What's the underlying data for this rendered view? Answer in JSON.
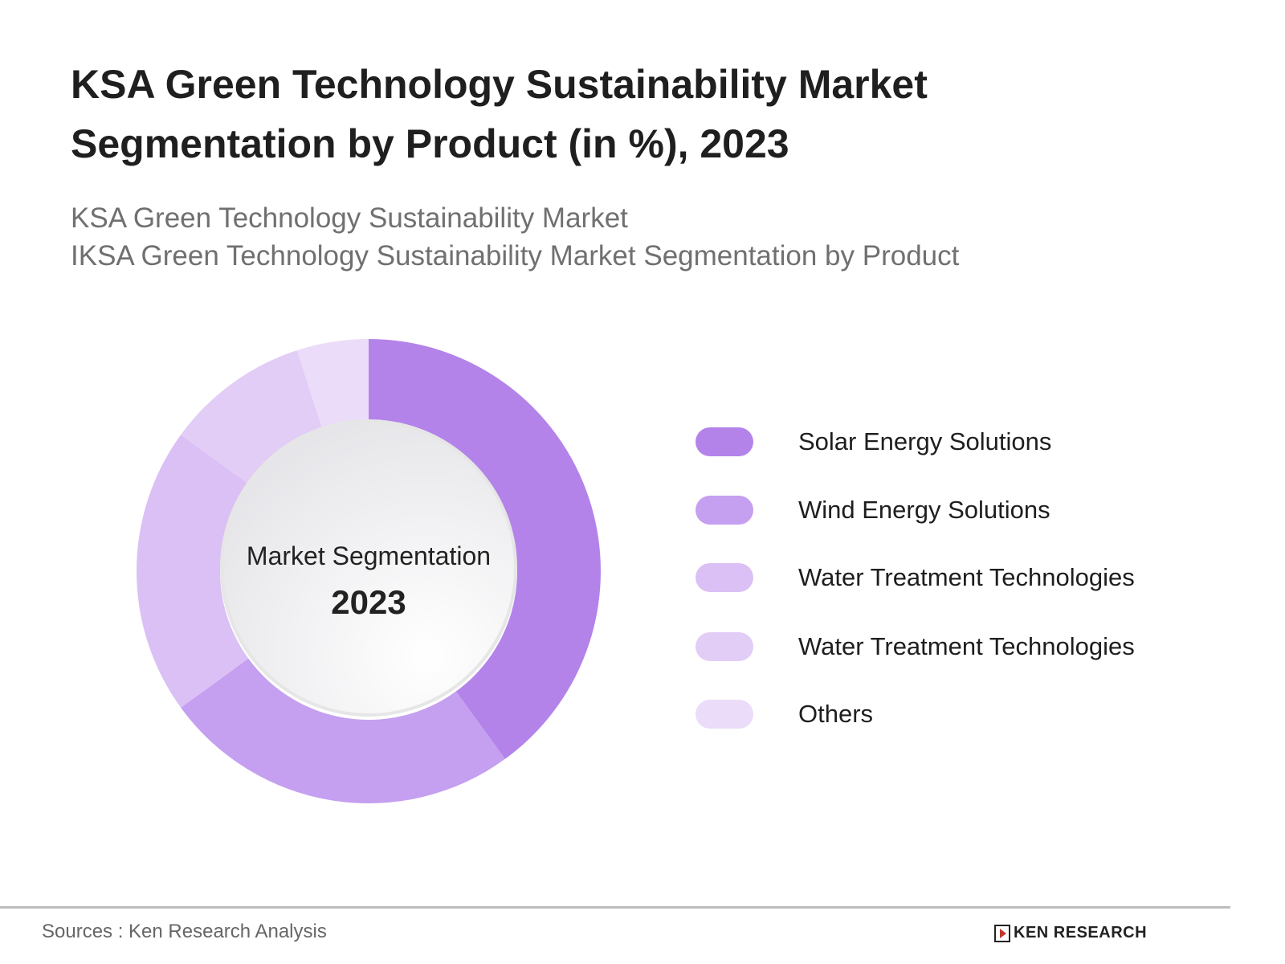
{
  "title": "KSA Green Technology Sustainability Market Segmentation by Product (in %), 2023",
  "subtitle_1": "KSA Green Technology Sustainability Market",
  "subtitle_2": "IKSA Green Technology Sustainability Market Segmentation by Product",
  "chart_data": {
    "type": "pie",
    "variant": "donut",
    "center_label": "Market Segmentation",
    "center_value": "2023",
    "unit": "%",
    "legend_position": "right",
    "categories": [
      "Solar Energy Solutions",
      "Wind Energy Solutions",
      "Water Treatment Technologies",
      "Water Treatment Technologies",
      "Others"
    ],
    "values": [
      40,
      25,
      20,
      10,
      5
    ],
    "colors": [
      "#b383ea",
      "#c59ff0",
      "#dbc0f5",
      "#e2cdf7",
      "#ebdcf9"
    ]
  },
  "footer": {
    "source": "Sources : Ken Research Analysis",
    "logo_text": "KEN RESEARCH"
  }
}
